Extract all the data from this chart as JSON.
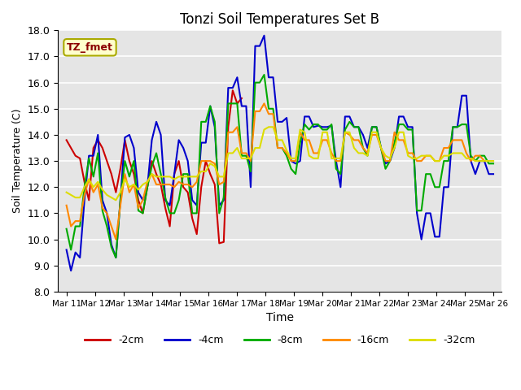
{
  "title": "Tonzi Soil Temperatures Set B",
  "xlabel": "Time",
  "ylabel": "Soil Temperature (C)",
  "ylim": [
    8.0,
    18.0
  ],
  "yticks": [
    8.0,
    9.0,
    10.0,
    11.0,
    12.0,
    13.0,
    14.0,
    15.0,
    16.0,
    17.0,
    18.0
  ],
  "plot_bg": "#e5e5e5",
  "annotation_text": "TZ_fmet",
  "annotation_color": "#8b0000",
  "annotation_bg": "#ffffcc",
  "x_labels": [
    "Mar 11",
    "Mar 12",
    "Mar 13",
    "Mar 14",
    "Mar 15",
    "Mar 16",
    "Mar 17",
    "Mar 18",
    "Mar 19",
    "Mar 20",
    "Mar 21",
    "Mar 22",
    "Mar 23",
    "Mar 24",
    "Mar 25",
    "Mar 26"
  ],
  "series": {
    "-2cm": {
      "color": "#cc0000",
      "data": [
        13.8,
        13.5,
        13.2,
        13.1,
        12.2,
        11.5,
        13.5,
        13.8,
        13.5,
        13.0,
        12.5,
        11.8,
        12.7,
        13.8,
        13.0,
        12.5,
        11.5,
        11.0,
        12.0,
        13.0,
        12.5,
        12.1,
        11.2,
        10.5,
        12.5,
        13.0,
        12.0,
        11.8,
        10.8,
        10.2,
        12.0,
        13.0,
        12.5,
        12.1,
        9.85,
        9.9,
        14.3,
        15.7,
        15.2,
        15.4,
        null,
        null,
        null,
        null,
        null,
        null,
        null,
        null,
        null,
        null,
        null,
        null,
        null,
        null,
        null,
        null,
        null,
        null,
        null,
        null,
        null,
        null,
        null,
        null,
        null,
        null,
        null,
        null,
        null,
        null,
        null,
        null,
        null,
        null,
        null,
        null,
        null,
        null,
        null,
        null,
        null,
        null,
        null,
        null,
        null,
        null,
        null,
        null,
        null,
        null,
        null,
        null,
        null,
        null,
        null,
        null
      ]
    },
    "-4cm": {
      "color": "#0000cc",
      "data": [
        9.6,
        8.8,
        9.5,
        9.3,
        11.5,
        13.2,
        13.2,
        14.0,
        11.5,
        11.0,
        9.8,
        9.3,
        11.5,
        13.9,
        14.0,
        13.5,
        11.8,
        11.5,
        12.0,
        13.8,
        14.5,
        14.0,
        11.5,
        11.3,
        12.5,
        13.8,
        13.5,
        13.0,
        11.5,
        11.3,
        13.7,
        13.7,
        15.1,
        14.3,
        11.3,
        11.5,
        15.8,
        15.8,
        16.2,
        15.1,
        15.1,
        12.0,
        17.4,
        17.4,
        17.8,
        16.2,
        16.2,
        14.5,
        14.5,
        14.65,
        13.0,
        12.9,
        13.0,
        14.7,
        14.7,
        14.3,
        14.35,
        14.3,
        14.3,
        14.35,
        13.0,
        12.0,
        14.7,
        14.7,
        14.3,
        14.3,
        14.0,
        13.5,
        14.3,
        14.3,
        13.5,
        12.9,
        13.0,
        13.5,
        14.7,
        14.7,
        14.3,
        14.3,
        11.0,
        10.0,
        11.0,
        11.0,
        10.1,
        10.1,
        12.0,
        12.0,
        14.3,
        14.3,
        15.5,
        15.5,
        13.0,
        12.5,
        13.0,
        13.0,
        12.5,
        12.5
      ]
    },
    "-8cm": {
      "color": "#00aa00",
      "data": [
        10.4,
        9.6,
        10.5,
        10.5,
        12.0,
        13.1,
        12.4,
        13.3,
        11.1,
        10.5,
        9.7,
        9.3,
        11.5,
        13.0,
        12.4,
        13.0,
        11.1,
        11.0,
        12.0,
        12.8,
        13.3,
        12.5,
        11.6,
        11.0,
        11.0,
        11.5,
        12.5,
        12.5,
        11.0,
        11.0,
        14.5,
        14.5,
        15.1,
        14.5,
        11.0,
        11.6,
        15.2,
        15.2,
        15.2,
        13.2,
        13.2,
        12.6,
        16.0,
        16.0,
        16.3,
        15.0,
        15.0,
        13.5,
        13.5,
        13.2,
        12.7,
        12.5,
        13.7,
        14.4,
        14.2,
        14.4,
        14.4,
        14.2,
        14.2,
        14.4,
        12.7,
        12.5,
        14.2,
        14.5,
        14.3,
        14.3,
        13.5,
        13.2,
        14.3,
        14.3,
        13.5,
        12.7,
        13.0,
        13.7,
        14.4,
        14.4,
        14.2,
        14.2,
        11.1,
        11.1,
        12.5,
        12.5,
        12.0,
        12.0,
        13.0,
        13.0,
        14.3,
        14.3,
        14.4,
        14.4,
        13.2,
        13.0,
        13.2,
        13.2,
        12.9,
        12.9
      ]
    },
    "-16cm": {
      "color": "#ff8800",
      "data": [
        11.3,
        10.5,
        10.7,
        10.7,
        11.7,
        12.3,
        11.8,
        12.1,
        11.2,
        11.0,
        10.5,
        10.0,
        11.3,
        12.5,
        11.8,
        12.1,
        11.2,
        11.5,
        12.2,
        12.5,
        12.1,
        12.1,
        12.1,
        12.1,
        12.0,
        12.2,
        12.1,
        12.1,
        12.0,
        12.2,
        13.0,
        13.0,
        13.0,
        12.9,
        12.1,
        12.2,
        14.1,
        14.1,
        14.3,
        13.3,
        13.3,
        13.0,
        14.9,
        14.9,
        15.2,
        14.8,
        14.8,
        13.5,
        13.5,
        13.3,
        13.0,
        13.0,
        14.1,
        13.8,
        13.8,
        13.3,
        13.3,
        13.8,
        13.8,
        13.3,
        13.0,
        13.0,
        14.1,
        14.0,
        13.8,
        13.8,
        13.5,
        13.3,
        14.0,
        14.0,
        13.5,
        13.0,
        13.0,
        14.1,
        13.8,
        13.8,
        13.3,
        13.3,
        13.0,
        13.0,
        13.2,
        13.2,
        13.0,
        13.0,
        13.5,
        13.5,
        13.8,
        13.8,
        13.8,
        13.3,
        13.0,
        13.2,
        13.2,
        13.0,
        13.0,
        13.0
      ]
    },
    "-32cm": {
      "color": "#dddd00",
      "data": [
        11.8,
        11.7,
        11.6,
        11.6,
        12.0,
        12.3,
        12.0,
        12.2,
        11.9,
        11.7,
        11.6,
        11.5,
        11.8,
        12.3,
        12.0,
        12.1,
        11.9,
        12.1,
        12.2,
        12.5,
        12.4,
        12.4,
        12.4,
        12.4,
        12.3,
        12.4,
        12.4,
        12.4,
        12.4,
        12.4,
        12.6,
        12.6,
        12.9,
        12.8,
        12.4,
        12.4,
        13.3,
        13.3,
        13.5,
        13.1,
        13.1,
        13.1,
        13.5,
        13.5,
        14.2,
        14.3,
        14.3,
        13.8,
        13.8,
        13.4,
        13.1,
        13.1,
        14.2,
        14.1,
        13.2,
        13.1,
        13.1,
        14.1,
        14.1,
        13.1,
        13.1,
        13.1,
        14.1,
        14.1,
        13.5,
        13.3,
        13.3,
        13.2,
        14.1,
        14.1,
        13.5,
        13.2,
        13.1,
        13.5,
        14.1,
        14.1,
        13.2,
        13.1,
        13.1,
        13.2,
        13.2,
        13.2,
        13.0,
        13.0,
        13.2,
        13.2,
        13.3,
        13.3,
        13.3,
        13.1,
        13.1,
        13.0,
        13.0,
        13.0,
        13.0,
        13.0
      ]
    }
  }
}
